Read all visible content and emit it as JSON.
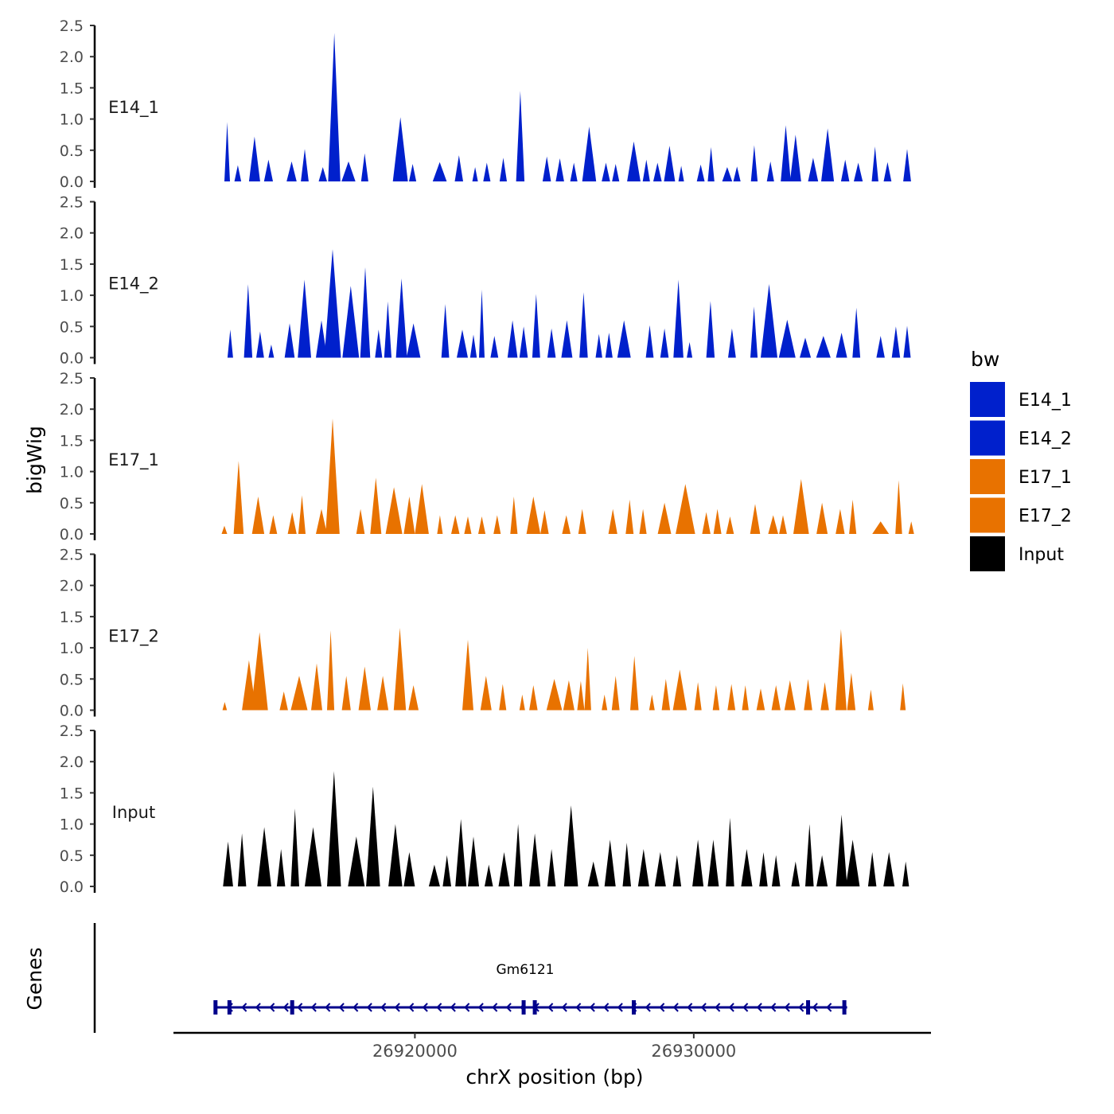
{
  "chart_data": {
    "type": "area",
    "ylabel": "bigWig",
    "xlabel": "chrX position (bp)",
    "ylim": [
      0,
      2.5
    ],
    "yticks": [
      "0.0",
      "0.5",
      "1.0",
      "1.5",
      "2.0",
      "2.5"
    ],
    "xlim": [
      26911400,
      26938450
    ],
    "xticks": [
      26920000,
      26930000
    ],
    "xtick_labels": [
      "26920000",
      "26930000"
    ],
    "legend": {
      "title": "bw",
      "entries": [
        {
          "label": "E14_1",
          "color": "#0020CC"
        },
        {
          "label": "E14_2",
          "color": "#0020CC"
        },
        {
          "label": "E17_1",
          "color": "#E87200"
        },
        {
          "label": "E17_2",
          "color": "#E87200"
        },
        {
          "label": "Input",
          "color": "#000000"
        }
      ]
    },
    "tracks": [
      {
        "name": "E14_1",
        "color": "#0020CC",
        "peaks": [
          [
            26913270,
            0.95,
            100
          ],
          [
            26913650,
            0.26,
            120
          ],
          [
            26914250,
            0.72,
            200
          ],
          [
            26914750,
            0.35,
            160
          ],
          [
            26915580,
            0.32,
            180
          ],
          [
            26916050,
            0.52,
            140
          ],
          [
            26916700,
            0.23,
            150
          ],
          [
            26917110,
            2.38,
            220
          ],
          [
            26917620,
            0.32,
            250
          ],
          [
            26918200,
            0.45,
            130
          ],
          [
            26919480,
            1.03,
            270
          ],
          [
            26919920,
            0.28,
            130
          ],
          [
            26920890,
            0.31,
            250
          ],
          [
            26921580,
            0.42,
            150
          ],
          [
            26922160,
            0.23,
            100
          ],
          [
            26922580,
            0.3,
            130
          ],
          [
            26923170,
            0.38,
            130
          ],
          [
            26923780,
            1.45,
            150
          ],
          [
            26924730,
            0.4,
            150
          ],
          [
            26925200,
            0.37,
            150
          ],
          [
            26925700,
            0.3,
            130
          ],
          [
            26926250,
            0.88,
            250
          ],
          [
            26926850,
            0.3,
            150
          ],
          [
            26927200,
            0.28,
            130
          ],
          [
            26927850,
            0.64,
            240
          ],
          [
            26928300,
            0.35,
            130
          ],
          [
            26928700,
            0.3,
            150
          ],
          [
            26929130,
            0.57,
            200
          ],
          [
            26929550,
            0.25,
            100
          ],
          [
            26930250,
            0.27,
            140
          ],
          [
            26930620,
            0.55,
            120
          ],
          [
            26931200,
            0.23,
            180
          ],
          [
            26931550,
            0.24,
            130
          ],
          [
            26932170,
            0.58,
            120
          ],
          [
            26932750,
            0.32,
            130
          ],
          [
            26933300,
            0.9,
            180
          ],
          [
            26933650,
            0.75,
            200
          ],
          [
            26934280,
            0.38,
            180
          ],
          [
            26934800,
            0.85,
            230
          ],
          [
            26935430,
            0.35,
            150
          ],
          [
            26935900,
            0.3,
            160
          ],
          [
            26936500,
            0.56,
            120
          ],
          [
            26936950,
            0.31,
            140
          ],
          [
            26937650,
            0.52,
            140
          ]
        ]
      },
      {
        "name": "E14_2",
        "color": "#0020CC",
        "peaks": [
          [
            26913380,
            0.45,
            100
          ],
          [
            26914020,
            1.18,
            150
          ],
          [
            26914450,
            0.42,
            140
          ],
          [
            26914850,
            0.21,
            100
          ],
          [
            26915510,
            0.55,
            180
          ],
          [
            26916040,
            1.25,
            240
          ],
          [
            26916650,
            0.6,
            200
          ],
          [
            26917050,
            1.74,
            300
          ],
          [
            26917700,
            1.15,
            300
          ],
          [
            26918220,
            1.45,
            180
          ],
          [
            26918700,
            0.45,
            130
          ],
          [
            26919030,
            0.9,
            130
          ],
          [
            26919520,
            1.27,
            200
          ],
          [
            26919950,
            0.55,
            250
          ],
          [
            26921090,
            0.86,
            140
          ],
          [
            26921700,
            0.45,
            200
          ],
          [
            26922100,
            0.37,
            120
          ],
          [
            26922400,
            1.09,
            100
          ],
          [
            26922850,
            0.35,
            140
          ],
          [
            26923500,
            0.6,
            180
          ],
          [
            26923900,
            0.5,
            150
          ],
          [
            26924350,
            1.02,
            140
          ],
          [
            26924900,
            0.47,
            150
          ],
          [
            26925450,
            0.6,
            200
          ],
          [
            26926050,
            1.05,
            150
          ],
          [
            26926600,
            0.38,
            120
          ],
          [
            26926960,
            0.4,
            130
          ],
          [
            26927500,
            0.6,
            240
          ],
          [
            26928420,
            0.52,
            140
          ],
          [
            26928950,
            0.47,
            150
          ],
          [
            26929450,
            1.25,
            180
          ],
          [
            26929850,
            0.25,
            100
          ],
          [
            26930600,
            0.91,
            150
          ],
          [
            26931370,
            0.47,
            140
          ],
          [
            26932160,
            0.82,
            130
          ],
          [
            26932700,
            1.18,
            300
          ],
          [
            26933350,
            0.61,
            300
          ],
          [
            26934000,
            0.32,
            200
          ],
          [
            26934650,
            0.35,
            260
          ],
          [
            26935300,
            0.4,
            200
          ],
          [
            26935830,
            0.8,
            140
          ],
          [
            26936700,
            0.35,
            150
          ],
          [
            26937250,
            0.5,
            150
          ],
          [
            26937650,
            0.51,
            130
          ]
        ]
      },
      {
        "name": "E17_1",
        "color": "#E87200",
        "peaks": [
          [
            26913170,
            0.13,
            100
          ],
          [
            26913680,
            1.17,
            180
          ],
          [
            26914380,
            0.6,
            220
          ],
          [
            26914920,
            0.3,
            140
          ],
          [
            26915600,
            0.35,
            160
          ],
          [
            26915950,
            0.62,
            130
          ],
          [
            26916650,
            0.4,
            200
          ],
          [
            26917050,
            1.85,
            250
          ],
          [
            26918050,
            0.4,
            150
          ],
          [
            26918600,
            0.9,
            200
          ],
          [
            26919250,
            0.75,
            300
          ],
          [
            26919800,
            0.6,
            200
          ],
          [
            26920250,
            0.8,
            250
          ],
          [
            26920900,
            0.3,
            100
          ],
          [
            26921450,
            0.3,
            150
          ],
          [
            26921900,
            0.28,
            130
          ],
          [
            26922400,
            0.28,
            130
          ],
          [
            26922950,
            0.3,
            130
          ],
          [
            26923550,
            0.6,
            130
          ],
          [
            26924250,
            0.6,
            250
          ],
          [
            26924650,
            0.38,
            150
          ],
          [
            26925430,
            0.3,
            150
          ],
          [
            26926000,
            0.4,
            140
          ],
          [
            26927100,
            0.4,
            160
          ],
          [
            26927700,
            0.55,
            140
          ],
          [
            26928180,
            0.4,
            130
          ],
          [
            26928950,
            0.5,
            240
          ],
          [
            26929700,
            0.8,
            350
          ],
          [
            26930450,
            0.35,
            150
          ],
          [
            26930850,
            0.4,
            140
          ],
          [
            26931300,
            0.28,
            140
          ],
          [
            26932200,
            0.48,
            180
          ],
          [
            26932850,
            0.3,
            180
          ],
          [
            26933200,
            0.3,
            140
          ],
          [
            26933850,
            0.88,
            280
          ],
          [
            26934600,
            0.5,
            200
          ],
          [
            26935250,
            0.4,
            160
          ],
          [
            26935700,
            0.55,
            130
          ],
          [
            26936700,
            0.2,
            300
          ],
          [
            26937350,
            0.86,
            120
          ],
          [
            26937800,
            0.2,
            100
          ]
        ]
      },
      {
        "name": "E17_2",
        "color": "#E87200",
        "peaks": [
          [
            26913180,
            0.13,
            80
          ],
          [
            26914050,
            0.8,
            250
          ],
          [
            26914430,
            1.25,
            300
          ],
          [
            26915300,
            0.3,
            150
          ],
          [
            26915850,
            0.55,
            300
          ],
          [
            26916480,
            0.75,
            200
          ],
          [
            26916980,
            1.28,
            130
          ],
          [
            26917540,
            0.55,
            160
          ],
          [
            26918200,
            0.7,
            220
          ],
          [
            26918850,
            0.55,
            200
          ],
          [
            26919460,
            1.32,
            220
          ],
          [
            26919950,
            0.4,
            180
          ],
          [
            26921900,
            1.13,
            200
          ],
          [
            26922550,
            0.55,
            200
          ],
          [
            26923150,
            0.42,
            130
          ],
          [
            26923850,
            0.25,
            100
          ],
          [
            26924250,
            0.4,
            150
          ],
          [
            26925000,
            0.5,
            280
          ],
          [
            26925520,
            0.48,
            200
          ],
          [
            26925950,
            0.47,
            130
          ],
          [
            26926200,
            1.0,
            120
          ],
          [
            26926800,
            0.25,
            100
          ],
          [
            26927200,
            0.55,
            140
          ],
          [
            26927870,
            0.87,
            150
          ],
          [
            26928500,
            0.25,
            100
          ],
          [
            26929000,
            0.5,
            150
          ],
          [
            26929500,
            0.65,
            250
          ],
          [
            26930150,
            0.45,
            130
          ],
          [
            26930800,
            0.4,
            120
          ],
          [
            26931350,
            0.42,
            140
          ],
          [
            26931850,
            0.4,
            120
          ],
          [
            26932400,
            0.35,
            150
          ],
          [
            26932950,
            0.4,
            160
          ],
          [
            26933450,
            0.48,
            200
          ],
          [
            26934100,
            0.5,
            150
          ],
          [
            26934700,
            0.45,
            150
          ],
          [
            26935280,
            1.3,
            200
          ],
          [
            26935650,
            0.6,
            150
          ],
          [
            26936350,
            0.33,
            100
          ],
          [
            26937500,
            0.43,
            100
          ]
        ]
      },
      {
        "name": "Input",
        "color": "#000000",
        "peaks": [
          [
            26913300,
            0.72,
            180
          ],
          [
            26913800,
            0.85,
            150
          ],
          [
            26914600,
            0.95,
            250
          ],
          [
            26915200,
            0.6,
            150
          ],
          [
            26915700,
            1.25,
            150
          ],
          [
            26916350,
            0.95,
            300
          ],
          [
            26917100,
            1.85,
            250
          ],
          [
            26917900,
            0.8,
            300
          ],
          [
            26918500,
            1.6,
            250
          ],
          [
            26919300,
            1.0,
            250
          ],
          [
            26919800,
            0.55,
            200
          ],
          [
            26920700,
            0.35,
            200
          ],
          [
            26921150,
            0.5,
            150
          ],
          [
            26921650,
            1.08,
            200
          ],
          [
            26922100,
            0.8,
            200
          ],
          [
            26922650,
            0.35,
            150
          ],
          [
            26923200,
            0.55,
            200
          ],
          [
            26923700,
            1.0,
            150
          ],
          [
            26924300,
            0.85,
            200
          ],
          [
            26924900,
            0.6,
            150
          ],
          [
            26925600,
            1.3,
            250
          ],
          [
            26926400,
            0.4,
            200
          ],
          [
            26927000,
            0.75,
            200
          ],
          [
            26927600,
            0.7,
            150
          ],
          [
            26928200,
            0.6,
            200
          ],
          [
            26928800,
            0.55,
            200
          ],
          [
            26929400,
            0.5,
            150
          ],
          [
            26930150,
            0.75,
            200
          ],
          [
            26930700,
            0.75,
            200
          ],
          [
            26931300,
            1.1,
            150
          ],
          [
            26931900,
            0.6,
            200
          ],
          [
            26932500,
            0.55,
            150
          ],
          [
            26932950,
            0.5,
            150
          ],
          [
            26933650,
            0.4,
            150
          ],
          [
            26934150,
            1.0,
            150
          ],
          [
            26934600,
            0.5,
            200
          ],
          [
            26935300,
            1.15,
            200
          ],
          [
            26935700,
            0.75,
            250
          ],
          [
            26936400,
            0.55,
            150
          ],
          [
            26937000,
            0.55,
            200
          ],
          [
            26937600,
            0.4,
            120
          ]
        ]
      }
    ],
    "genes": {
      "title": "Genes",
      "name": "Gm6121",
      "start": 26912800,
      "end": 26935500,
      "strand": "-",
      "color": "#00008B",
      "exons": [
        26912850,
        26913350,
        26915600,
        26923900,
        26924300,
        26927850,
        26934100,
        26935400
      ]
    }
  }
}
